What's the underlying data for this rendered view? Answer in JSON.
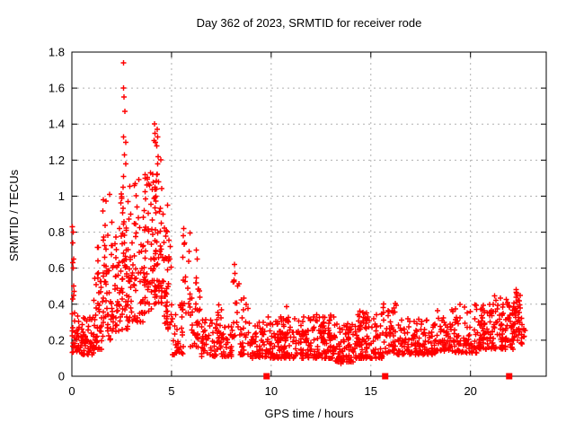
{
  "page": {
    "background": "#ffffff"
  },
  "chart_data": {
    "type": "scatter",
    "title": "Day 362 of 2023, SRMTID for receiver rode",
    "xlabel": "GPS time / hours",
    "ylabel": "SRMTID / TECUs",
    "xlim": [
      0,
      23.8
    ],
    "ylim": [
      0,
      1.8
    ],
    "grid": true,
    "legend": "none",
    "axis_color": "#000000",
    "grid_color": "#b0b0b0",
    "text_color": "#000000",
    "xticks": [
      {
        "v": 0,
        "label": "0"
      },
      {
        "v": 5,
        "label": "5"
      },
      {
        "v": 10,
        "label": "10"
      },
      {
        "v": 15,
        "label": "15"
      },
      {
        "v": 20,
        "label": "20"
      }
    ],
    "yticks": [
      {
        "v": 0,
        "label": "0"
      },
      {
        "v": 0.2,
        "label": "0.2"
      },
      {
        "v": 0.4,
        "label": "0.4"
      },
      {
        "v": 0.6,
        "label": "0.6"
      },
      {
        "v": 0.8,
        "label": "0.8"
      },
      {
        "v": 1,
        "label": "1"
      },
      {
        "v": 1.2,
        "label": "1.2"
      },
      {
        "v": 1.4,
        "label": "1.4"
      },
      {
        "v": 1.6,
        "label": "1.6"
      },
      {
        "v": 1.8,
        "label": "1.8"
      }
    ],
    "series_name": "SRMTID",
    "marker": {
      "shape": "plus",
      "color": "#ff0000",
      "half_size": 3,
      "stroke_width": 1.4
    },
    "notable_points": [
      [
        0.03,
        0.83
      ],
      [
        0.06,
        0.8
      ],
      [
        0.05,
        0.74
      ],
      [
        0.08,
        0.65
      ],
      [
        0.04,
        0.63
      ],
      [
        0.07,
        0.6
      ],
      [
        0.1,
        0.5
      ],
      [
        0.12,
        0.47
      ],
      [
        0.08,
        0.45
      ],
      [
        0.05,
        0.43
      ],
      [
        1.9,
        1.01
      ],
      [
        2.6,
        1.74
      ],
      [
        2.6,
        1.6
      ],
      [
        2.62,
        1.55
      ],
      [
        2.65,
        1.47
      ],
      [
        2.6,
        1.33
      ],
      [
        2.7,
        1.3
      ],
      [
        2.63,
        1.23
      ],
      [
        2.7,
        1.18
      ],
      [
        2.6,
        1.11
      ],
      [
        2.58,
        1.05
      ],
      [
        4.15,
        1.4
      ],
      [
        4.28,
        1.37
      ],
      [
        4.18,
        1.35
      ],
      [
        4.3,
        1.33
      ],
      [
        4.12,
        1.31
      ],
      [
        4.2,
        1.3
      ],
      [
        4.25,
        1.28
      ],
      [
        4.32,
        1.22
      ],
      [
        4.3,
        1.18
      ],
      [
        4.27,
        1.12
      ],
      [
        4.35,
        1.08
      ],
      [
        4.8,
        0.95
      ],
      [
        5.62,
        0.82
      ],
      [
        5.6,
        0.78
      ],
      [
        5.65,
        0.74
      ],
      [
        6.25,
        0.7
      ],
      [
        6.28,
        0.65
      ],
      [
        8.15,
        0.62
      ],
      [
        8.18,
        0.57
      ],
      [
        13.5,
        0.07
      ],
      [
        13.8,
        0.08
      ],
      [
        22.28,
        0.48
      ],
      [
        22.32,
        0.46
      ],
      [
        22.3,
        0.44
      ]
    ],
    "density_clusters": [
      [
        0.0,
        0.35,
        0.13,
        0.38,
        35,
        1.8
      ],
      [
        0.35,
        1.1,
        0.12,
        0.33,
        55,
        1.8
      ],
      [
        1.1,
        1.5,
        0.15,
        0.55,
        35,
        2.0
      ],
      [
        1.25,
        1.35,
        0.4,
        0.78,
        8,
        1.0
      ],
      [
        1.5,
        1.95,
        0.2,
        0.6,
        30,
        1.6
      ],
      [
        1.55,
        1.85,
        0.55,
        1.0,
        14,
        1.0
      ],
      [
        1.95,
        2.45,
        0.25,
        0.95,
        45,
        1.6
      ],
      [
        2.45,
        2.85,
        0.25,
        1.05,
        50,
        1.3
      ],
      [
        2.85,
        3.6,
        0.3,
        1.12,
        65,
        1.4
      ],
      [
        3.6,
        4.1,
        0.35,
        1.15,
        55,
        1.3
      ],
      [
        4.1,
        4.6,
        0.4,
        1.22,
        65,
        1.3
      ],
      [
        4.6,
        5.0,
        0.25,
        0.9,
        40,
        1.5
      ],
      [
        5.0,
        5.6,
        0.12,
        0.45,
        35,
        1.5
      ],
      [
        5.55,
        5.95,
        0.35,
        0.8,
        16,
        1.2
      ],
      [
        5.9,
        6.4,
        0.15,
        0.45,
        25,
        1.5
      ],
      [
        6.2,
        6.45,
        0.35,
        0.68,
        10,
        1.2
      ],
      [
        6.4,
        8.05,
        0.11,
        0.33,
        85,
        1.8
      ],
      [
        7.2,
        7.6,
        0.2,
        0.4,
        12,
        1.4
      ],
      [
        8.05,
        8.4,
        0.22,
        0.58,
        16,
        1.4
      ],
      [
        8.4,
        8.9,
        0.12,
        0.45,
        30,
        2.0
      ],
      [
        8.9,
        9.8,
        0.1,
        0.3,
        55,
        1.7
      ],
      [
        9.8,
        12.0,
        0.1,
        0.33,
        160,
        1.9
      ],
      [
        10.4,
        10.9,
        0.2,
        0.4,
        12,
        1.3
      ],
      [
        12.0,
        13.2,
        0.1,
        0.35,
        95,
        1.9
      ],
      [
        12.5,
        13.0,
        0.2,
        0.37,
        12,
        1.3
      ],
      [
        13.2,
        14.2,
        0.08,
        0.3,
        75,
        1.9
      ],
      [
        14.2,
        15.6,
        0.1,
        0.35,
        105,
        1.9
      ],
      [
        14.4,
        14.8,
        0.2,
        0.4,
        10,
        1.3
      ],
      [
        15.6,
        16.3,
        0.13,
        0.42,
        45,
        1.7
      ],
      [
        16.3,
        18.3,
        0.12,
        0.32,
        130,
        1.8
      ],
      [
        18.3,
        19.2,
        0.14,
        0.38,
        60,
        1.7
      ],
      [
        19.2,
        20.3,
        0.13,
        0.4,
        75,
        1.8
      ],
      [
        20.3,
        21.2,
        0.15,
        0.4,
        70,
        1.7
      ],
      [
        21.2,
        22.15,
        0.15,
        0.46,
        75,
        1.6
      ],
      [
        22.15,
        22.5,
        0.2,
        0.47,
        40,
        1.2
      ],
      [
        22.5,
        22.75,
        0.18,
        0.33,
        12,
        1.5
      ]
    ],
    "baseline_gap_squares": {
      "y": 0,
      "x": [
        9.77,
        15.72,
        21.94
      ],
      "shape": "filled-square",
      "color": "#ff0000",
      "size": 7
    },
    "seed": 362
  }
}
